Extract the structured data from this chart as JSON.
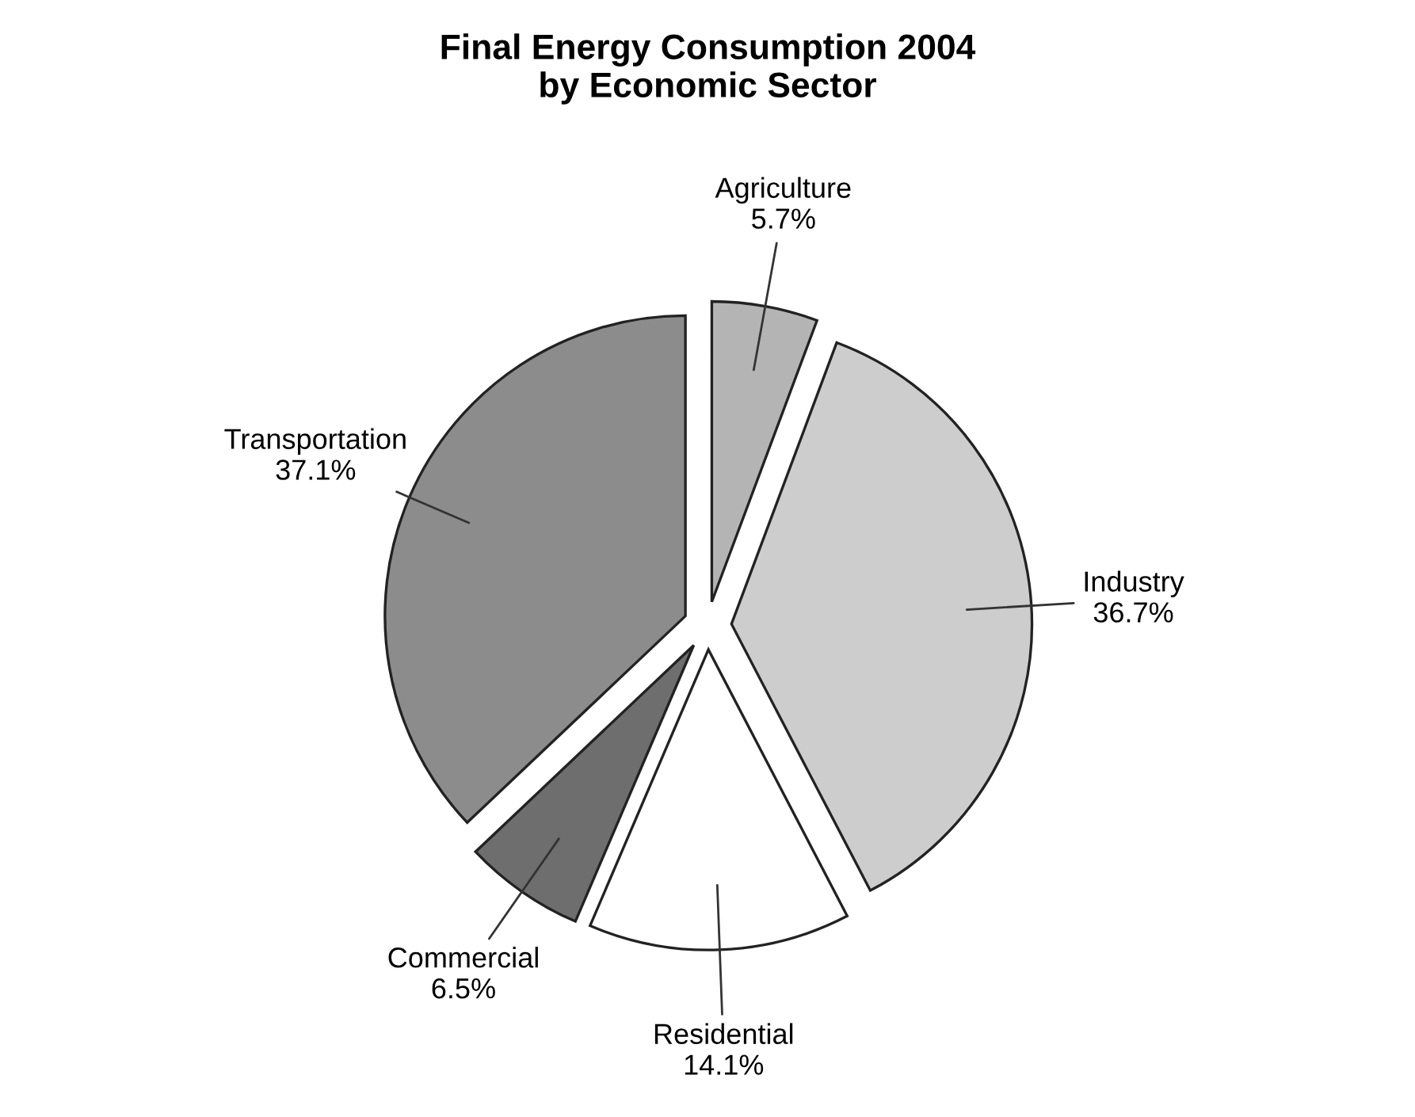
{
  "chart_data": {
    "type": "pie",
    "title": "Final Energy Consumption 2004\nby Economic Sector",
    "categories": [
      "Agriculture",
      "Industry",
      "Residential",
      "Commercial",
      "Transportation"
    ],
    "values": [
      5.7,
      36.7,
      14.1,
      6.5,
      37.1
    ],
    "value_labels": [
      "5.7%",
      "36.7%",
      "14.1%",
      "6.5%",
      "37.1%"
    ],
    "colors": [
      "#b4b4b4",
      "#cdcdcd",
      "#ffffff",
      "#6e6e6e",
      "#8c8c8c"
    ],
    "legend": false
  }
}
